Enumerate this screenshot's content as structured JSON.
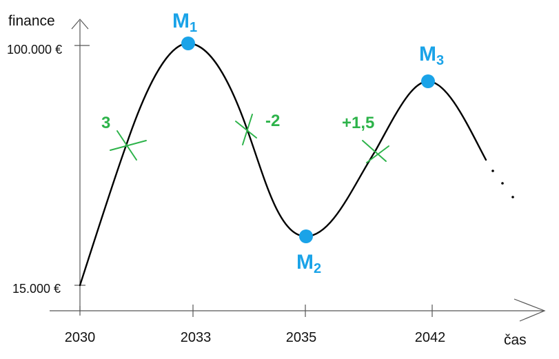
{
  "chart_data": {
    "type": "line",
    "title": "",
    "xlabel": "čas",
    "ylabel": "finance",
    "x_ticks": [
      "2030",
      "2033",
      "2035",
      "2042"
    ],
    "y_ticks": [
      "15.000 €",
      "100.000 €"
    ],
    "y_values": [
      15000,
      100000
    ],
    "series": [
      {
        "x": [
          2030,
          2031.2,
          2033,
          2034.5,
          2035,
          2038.5,
          2042,
          2043.2
        ],
        "y": [
          15000,
          64000,
          100000,
          66000,
          32000,
          62000,
          87000,
          60000
        ]
      }
    ],
    "extrema": [
      {
        "label": "M",
        "sub": "1",
        "x": 2033,
        "y": 100000,
        "color": "#1aa3e8"
      },
      {
        "label": "M",
        "sub": "2",
        "x": 2035,
        "y": 32000,
        "color": "#1aa3e8"
      },
      {
        "label": "M",
        "sub": "3",
        "x": 2042,
        "y": 87000,
        "color": "#1aa3e8"
      }
    ],
    "inflections": [
      {
        "slope": "3",
        "x": 2031.2,
        "y": 64000
      },
      {
        "slope": "-2",
        "x": 2034.5,
        "y": 66000
      },
      {
        "slope": "+1,5",
        "x": 2038.5,
        "y": 62000
      }
    ],
    "annotation_color": "#2db34a",
    "continuation": "dotted",
    "grid": false
  }
}
